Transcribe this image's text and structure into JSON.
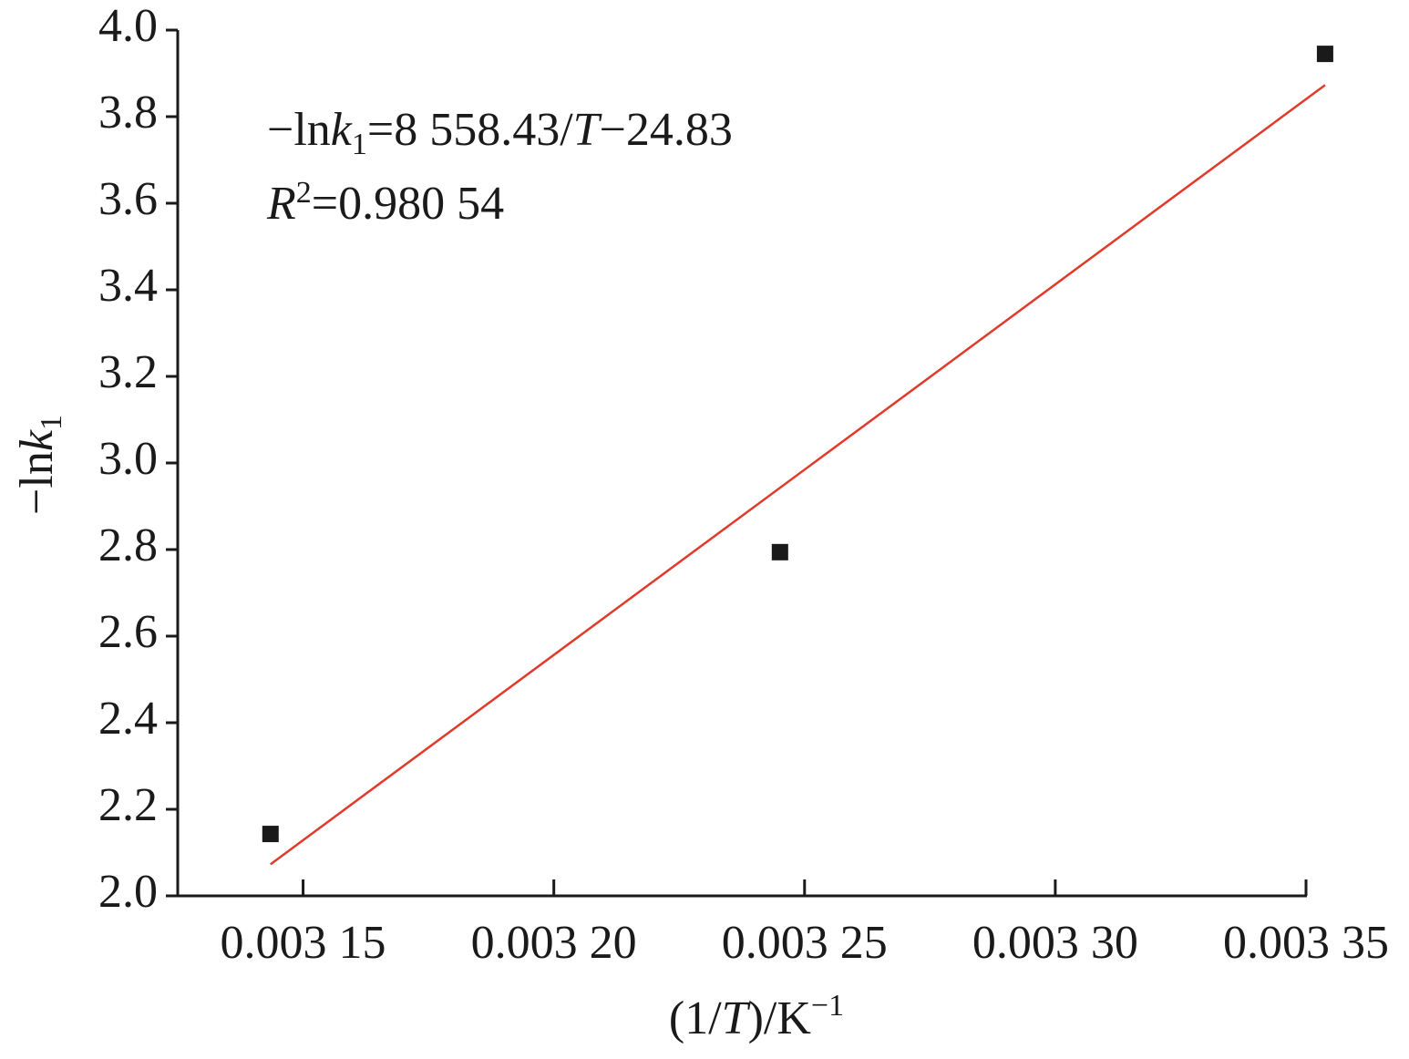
{
  "chart_data": {
    "type": "scatter",
    "x_label": [
      "(1/",
      "T",
      ")/K",
      "−1"
    ],
    "y_label": [
      "−ln",
      "k",
      "1"
    ],
    "annotations": [
      [
        "−ln",
        "k",
        "1",
        "=8 558.43/",
        "T",
        "−24.83"
      ],
      [
        "R",
        "2",
        "=0.980 54"
      ]
    ],
    "xlim": [
      0.003125,
      0.00335
    ],
    "ylim": [
      2.0,
      4.0
    ],
    "xticks": [
      {
        "value": 0.00315,
        "label": "0.003 15"
      },
      {
        "value": 0.0032,
        "label": "0.003 20"
      },
      {
        "value": 0.00325,
        "label": "0.003 25"
      },
      {
        "value": 0.0033,
        "label": "0.003 30"
      },
      {
        "value": 0.00335,
        "label": "0.003 35"
      }
    ],
    "yticks": [
      {
        "value": 2.0,
        "label": "2.0"
      },
      2.2,
      2.4,
      2.6,
      2.8,
      {
        "value": 3.0,
        "label": "3.0"
      },
      3.2,
      3.4,
      3.6,
      3.8,
      {
        "value": 4.0,
        "label": "4.0"
      }
    ],
    "series": [
      {
        "color": "#1a1a1a",
        "x": [
          0.0031435,
          0.0032451,
          0.0033538
        ],
        "values": [
          2.143,
          2.794,
          3.945
        ]
      },
      {
        "color": "#e03a2a",
        "x": [
          0.0031435,
          0.0033538
        ],
        "values": [
          2.073,
          3.873
        ]
      }
    ]
  }
}
